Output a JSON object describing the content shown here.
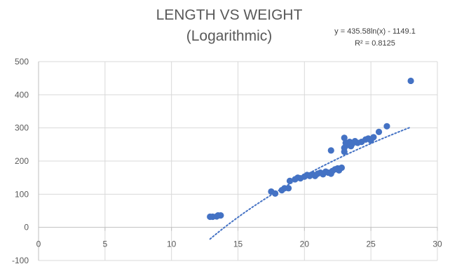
{
  "chart_data": {
    "type": "scatter",
    "title_lines": [
      "LENGTH VS WEIGHT",
      "(Logarithmic)"
    ],
    "trendline": {
      "type": "logarithmic",
      "a": 435.58,
      "b": -1149.1,
      "x_range": [
        12.9,
        28.0
      ],
      "equation_label": "y = 435.58ln(x) - 1149.1",
      "r2_label": "R² = 0.8125"
    },
    "xlim": [
      0,
      30
    ],
    "ylim": [
      -100,
      500
    ],
    "x_ticks": [
      0,
      5,
      10,
      15,
      20,
      25,
      30
    ],
    "y_ticks": [
      -100,
      0,
      100,
      200,
      300,
      400,
      500
    ],
    "grid": true,
    "marker_color": "#4472c4",
    "points": [
      [
        12.9,
        32
      ],
      [
        13.1,
        32
      ],
      [
        13.4,
        33
      ],
      [
        13.5,
        36
      ],
      [
        13.7,
        36
      ],
      [
        17.5,
        108
      ],
      [
        17.8,
        102
      ],
      [
        18.3,
        112
      ],
      [
        18.5,
        118
      ],
      [
        18.8,
        118
      ],
      [
        18.9,
        140
      ],
      [
        19.3,
        145
      ],
      [
        19.5,
        150
      ],
      [
        19.7,
        148
      ],
      [
        20.0,
        153
      ],
      [
        20.2,
        158
      ],
      [
        20.4,
        155
      ],
      [
        20.6,
        160
      ],
      [
        20.8,
        155
      ],
      [
        21.0,
        162
      ],
      [
        21.2,
        165
      ],
      [
        21.4,
        160
      ],
      [
        21.6,
        168
      ],
      [
        21.8,
        165
      ],
      [
        22.0,
        162
      ],
      [
        22.1,
        170
      ],
      [
        22.3,
        175
      ],
      [
        22.5,
        178
      ],
      [
        22.6,
        172
      ],
      [
        22.8,
        180
      ],
      [
        22.0,
        232
      ],
      [
        23.0,
        228
      ],
      [
        23.0,
        240
      ],
      [
        23.1,
        255
      ],
      [
        23.0,
        270
      ],
      [
        23.2,
        248
      ],
      [
        23.4,
        258
      ],
      [
        23.5,
        245
      ],
      [
        23.6,
        252
      ],
      [
        23.8,
        260
      ],
      [
        24.0,
        255
      ],
      [
        24.3,
        258
      ],
      [
        24.6,
        265
      ],
      [
        24.8,
        268
      ],
      [
        25.0,
        262
      ],
      [
        25.2,
        272
      ],
      [
        25.6,
        288
      ],
      [
        26.2,
        305
      ],
      [
        28.0,
        442
      ]
    ]
  }
}
